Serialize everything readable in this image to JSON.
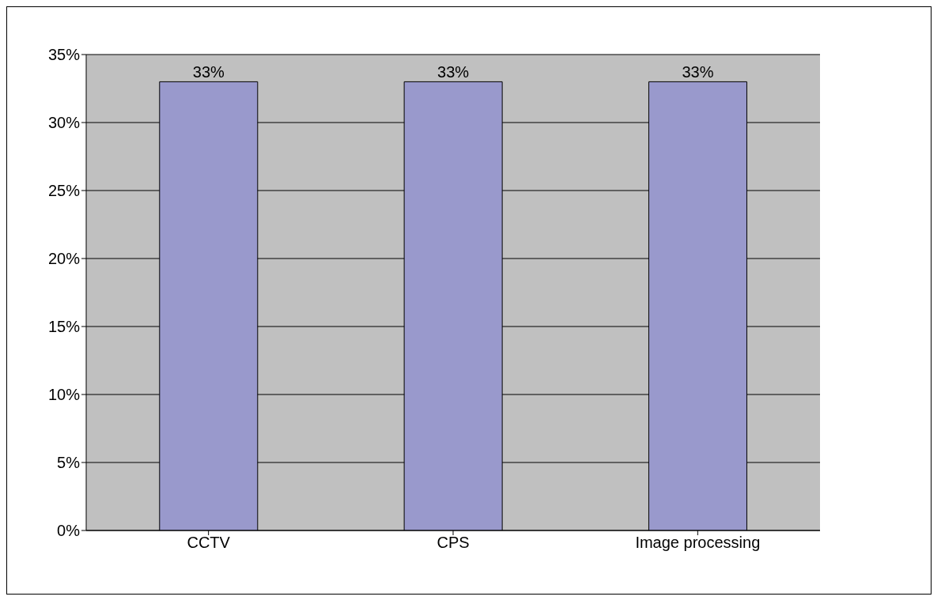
{
  "chart_data": {
    "type": "bar",
    "categories": [
      "CCTV",
      "CPS",
      "Image processing"
    ],
    "values": [
      33,
      33,
      33
    ],
    "color": "#9999cc",
    "value_labels": [
      "33%",
      "33%",
      "33%"
    ],
    "ylim": [
      0,
      35
    ],
    "yticks": [
      {
        "value": 0,
        "label": "0%"
      },
      {
        "value": 5,
        "label": "5%"
      },
      {
        "value": 10,
        "label": "10%"
      },
      {
        "value": 15,
        "label": "15%"
      },
      {
        "value": 20,
        "label": "20%"
      },
      {
        "value": 25,
        "label": "25%"
      },
      {
        "value": 30,
        "label": "30%"
      },
      {
        "value": 35,
        "label": "35%"
      }
    ],
    "grid": "y"
  }
}
